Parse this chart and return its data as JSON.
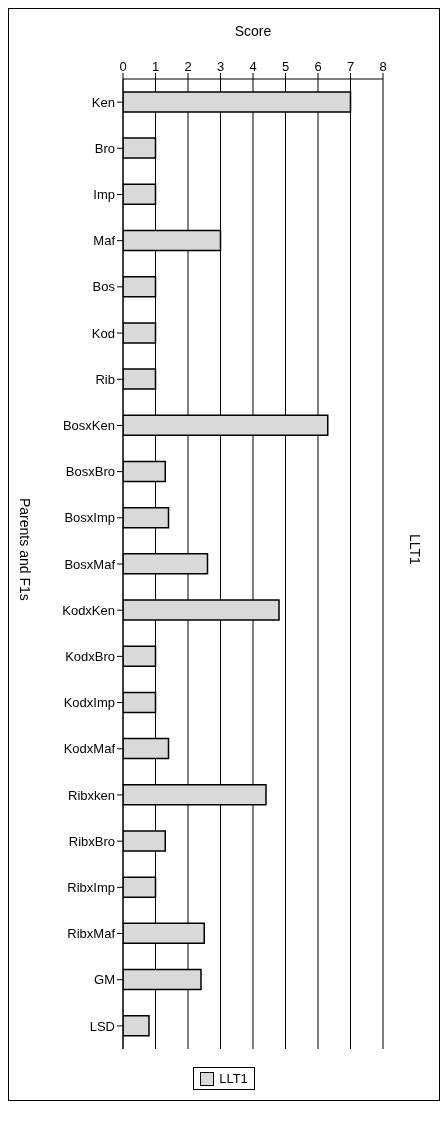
{
  "chart_data": {
    "type": "bar",
    "orientation": "horizontal",
    "title": "LLT1",
    "xlabel": "Score",
    "ylabel": "Parents and F1s",
    "categories": [
      "Ken",
      "Bro",
      "Imp",
      "Maf",
      "Bos",
      "Kod",
      "Rib",
      "BosxKen",
      "BosxBro",
      "BosxImp",
      "BosxMaf",
      "KodxKen",
      "KodxBro",
      "KodxImp",
      "KodxMaf",
      "Ribxken",
      "RibxBro",
      "RibxImp",
      "RibxMaf",
      "GM",
      "LSD"
    ],
    "series": [
      {
        "name": "LLT1",
        "color": "#d9d9d9",
        "values": [
          7.0,
          1.0,
          1.0,
          3.0,
          1.0,
          1.0,
          1.0,
          6.3,
          1.3,
          1.4,
          2.6,
          4.8,
          1.0,
          1.0,
          1.4,
          4.4,
          1.3,
          1.0,
          2.5,
          2.4,
          0.8
        ]
      }
    ],
    "xlim": [
      0,
      8
    ],
    "xticks": [
      0,
      1,
      2,
      3,
      4,
      5,
      6,
      7,
      8
    ],
    "grid": "x",
    "legend": "bottom"
  }
}
